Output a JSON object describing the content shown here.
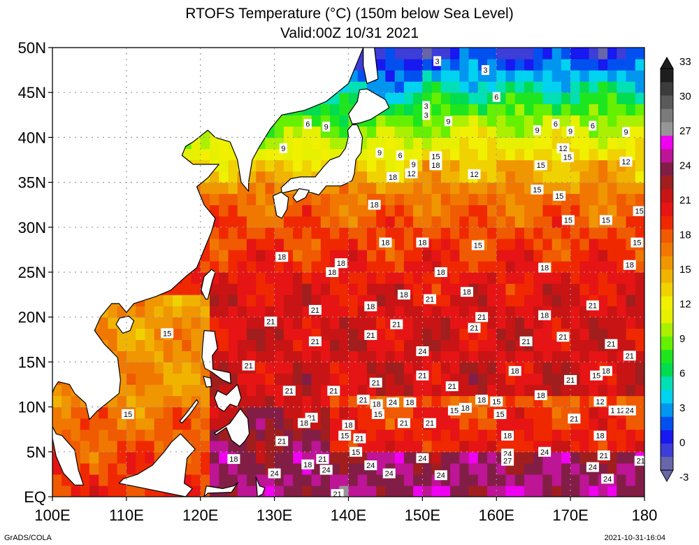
{
  "title_line1": "RTOFS Temperature (°C) (150m below Sea Level)",
  "title_line2": "Valid:00Z 10/31 2021",
  "footer_left": "GrADS/COLA",
  "footer_right": "2021-10-31-16:04",
  "map": {
    "lon_range": [
      100,
      180
    ],
    "lat_range": [
      0,
      50
    ],
    "lon_labels": [
      "100E",
      "110E",
      "120E",
      "130E",
      "140E",
      "150E",
      "160E",
      "170E",
      "180"
    ],
    "lat_labels": [
      "EQ",
      "5N",
      "10N",
      "15N",
      "20N",
      "25N",
      "30N",
      "35N",
      "40N",
      "45N",
      "50N"
    ],
    "grid": "dotted",
    "land_color": "#ffffff",
    "coast_color": "#000000"
  },
  "colorbar": {
    "labels": [
      "-3",
      "0",
      "3",
      "6",
      "9",
      "12",
      "15",
      "18",
      "21",
      "24",
      "27",
      "30",
      "33"
    ],
    "colors": [
      "#6666a8",
      "#3d3dd8",
      "#1818f0",
      "#0050f0",
      "#0096f0",
      "#00d2f0",
      "#00e0b4",
      "#00dc50",
      "#1ee61e",
      "#64f000",
      "#aaf000",
      "#e6f000",
      "#f0f000",
      "#f0d200",
      "#f0b400",
      "#f09600",
      "#f07800",
      "#f05a00",
      "#f02800",
      "#e61414",
      "#c81414",
      "#a01e1e",
      "#821e46",
      "#be1496",
      "#f000f0",
      "#969696",
      "#7a7a7a",
      "#5a5a5a",
      "#3c3c3c",
      "#1e1e1e"
    ]
  },
  "contour_labels": [
    {
      "t": "3",
      "lon": 152.0,
      "lat": 48.5
    },
    {
      "t": "3",
      "lon": 158.5,
      "lat": 47.5
    },
    {
      "t": "6",
      "lon": 160.0,
      "lat": 44.5
    },
    {
      "t": "3",
      "lon": 150.5,
      "lat": 43.5
    },
    {
      "t": "3",
      "lon": 150.5,
      "lat": 42.5
    },
    {
      "t": "9",
      "lon": 153.5,
      "lat": 41.8
    },
    {
      "t": "6",
      "lon": 134.5,
      "lat": 41.5
    },
    {
      "t": "9",
      "lon": 137.0,
      "lat": 41.2
    },
    {
      "t": "9",
      "lon": 131.2,
      "lat": 38.8
    },
    {
      "t": "6",
      "lon": 168.0,
      "lat": 41.5
    },
    {
      "t": "9",
      "lon": 165.5,
      "lat": 40.8
    },
    {
      "t": "9",
      "lon": 170.0,
      "lat": 40.7
    },
    {
      "t": "6",
      "lon": 173.0,
      "lat": 41.3
    },
    {
      "t": "9",
      "lon": 177.5,
      "lat": 40.6
    },
    {
      "t": "9",
      "lon": 144.2,
      "lat": 38.3
    },
    {
      "t": "6",
      "lon": 147.0,
      "lat": 38.0
    },
    {
      "t": "9",
      "lon": 148.8,
      "lat": 37.0
    },
    {
      "t": "12",
      "lon": 148.5,
      "lat": 36.0
    },
    {
      "t": "15",
      "lon": 151.8,
      "lat": 37.9
    },
    {
      "t": "18",
      "lon": 151.8,
      "lat": 36.9
    },
    {
      "t": "12",
      "lon": 157.0,
      "lat": 35.9
    },
    {
      "t": "12",
      "lon": 169.0,
      "lat": 38.8
    },
    {
      "t": "15",
      "lon": 169.6,
      "lat": 37.8
    },
    {
      "t": "15",
      "lon": 166.0,
      "lat": 36.9
    },
    {
      "t": "12",
      "lon": 177.5,
      "lat": 37.3
    },
    {
      "t": "18",
      "lon": 146.0,
      "lat": 35.6
    },
    {
      "t": "18",
      "lon": 143.5,
      "lat": 32.5
    },
    {
      "t": "15",
      "lon": 165.5,
      "lat": 34.2
    },
    {
      "t": "15",
      "lon": 168.5,
      "lat": 33.5
    },
    {
      "t": "15",
      "lon": 179.3,
      "lat": 31.8
    },
    {
      "t": "15",
      "lon": 169.7,
      "lat": 30.8
    },
    {
      "t": "15",
      "lon": 174.8,
      "lat": 30.8
    },
    {
      "t": "18",
      "lon": 145.0,
      "lat": 28.3
    },
    {
      "t": "18",
      "lon": 150.0,
      "lat": 28.3
    },
    {
      "t": "15",
      "lon": 157.5,
      "lat": 28.0
    },
    {
      "t": "15",
      "lon": 179.0,
      "lat": 28.3
    },
    {
      "t": "18",
      "lon": 131.0,
      "lat": 26.7
    },
    {
      "t": "18",
      "lon": 139.0,
      "lat": 26.0
    },
    {
      "t": "18",
      "lon": 137.8,
      "lat": 25.0
    },
    {
      "t": "18",
      "lon": 152.5,
      "lat": 25.0
    },
    {
      "t": "18",
      "lon": 166.5,
      "lat": 25.5
    },
    {
      "t": "18",
      "lon": 178.0,
      "lat": 25.8
    },
    {
      "t": "18",
      "lon": 156.0,
      "lat": 22.8
    },
    {
      "t": "18",
      "lon": 147.5,
      "lat": 22.5
    },
    {
      "t": "21",
      "lon": 151.0,
      "lat": 22.0
    },
    {
      "t": "18",
      "lon": 143.0,
      "lat": 21.2
    },
    {
      "t": "21",
      "lon": 135.5,
      "lat": 20.8
    },
    {
      "t": "21",
      "lon": 173.0,
      "lat": 21.3
    },
    {
      "t": "21",
      "lon": 158.0,
      "lat": 20.0
    },
    {
      "t": "18",
      "lon": 166.5,
      "lat": 20.2
    },
    {
      "t": "21",
      "lon": 129.5,
      "lat": 19.5
    },
    {
      "t": "21",
      "lon": 146.5,
      "lat": 19.2
    },
    {
      "t": "21",
      "lon": 157.0,
      "lat": 18.8
    },
    {
      "t": "15",
      "lon": 115.5,
      "lat": 18.2
    },
    {
      "t": "21",
      "lon": 143.0,
      "lat": 18.0
    },
    {
      "t": "21",
      "lon": 135.5,
      "lat": 17.3
    },
    {
      "t": "21",
      "lon": 169.0,
      "lat": 17.8
    },
    {
      "t": "21",
      "lon": 164.0,
      "lat": 17.3
    },
    {
      "t": "21",
      "lon": 175.5,
      "lat": 17.0
    },
    {
      "t": "24",
      "lon": 150.0,
      "lat": 16.2
    },
    {
      "t": "21",
      "lon": 178.0,
      "lat": 15.7
    },
    {
      "t": "21",
      "lon": 126.5,
      "lat": 14.6
    },
    {
      "t": "18",
      "lon": 162.5,
      "lat": 14.0
    },
    {
      "t": "18",
      "lon": 174.8,
      "lat": 14.0
    },
    {
      "t": "15",
      "lon": 173.5,
      "lat": 13.5
    },
    {
      "t": "21",
      "lon": 150.0,
      "lat": 13.5
    },
    {
      "t": "21",
      "lon": 170.0,
      "lat": 13.0
    },
    {
      "t": "21",
      "lon": 143.7,
      "lat": 12.7
    },
    {
      "t": "21",
      "lon": 154.0,
      "lat": 12.3
    },
    {
      "t": "21",
      "lon": 132.0,
      "lat": 11.8
    },
    {
      "t": "21",
      "lon": 138.0,
      "lat": 11.8
    },
    {
      "t": "18",
      "lon": 166.0,
      "lat": 11.3
    },
    {
      "t": "21",
      "lon": 142.0,
      "lat": 10.8
    },
    {
      "t": "18",
      "lon": 143.8,
      "lat": 10.3
    },
    {
      "t": "24",
      "lon": 146.0,
      "lat": 10.5
    },
    {
      "t": "18",
      "lon": 148.3,
      "lat": 10.5
    },
    {
      "t": "18",
      "lon": 158.0,
      "lat": 10.8
    },
    {
      "t": "15",
      "lon": 160.0,
      "lat": 10.6
    },
    {
      "t": "12",
      "lon": 174.0,
      "lat": 10.6
    },
    {
      "t": "18",
      "lon": 155.8,
      "lat": 9.9
    },
    {
      "t": "15",
      "lon": 154.3,
      "lat": 9.6
    },
    {
      "t": "12",
      "lon": 176.0,
      "lat": 9.6
    },
    {
      "t": "12",
      "lon": 176.8,
      "lat": 9.6
    },
    {
      "t": "24",
      "lon": 178.0,
      "lat": 9.6
    },
    {
      "t": "15",
      "lon": 110.2,
      "lat": 9.2
    },
    {
      "t": "21",
      "lon": 135.0,
      "lat": 8.8
    },
    {
      "t": "15",
      "lon": 160.5,
      "lat": 9.2
    },
    {
      "t": "15",
      "lon": 144.0,
      "lat": 9.2
    },
    {
      "t": "21",
      "lon": 170.5,
      "lat": 8.7
    },
    {
      "t": "18",
      "lon": 134.0,
      "lat": 8.2
    },
    {
      "t": "21",
      "lon": 147.5,
      "lat": 8.2
    },
    {
      "t": "21",
      "lon": 151.0,
      "lat": 8.2
    },
    {
      "t": "18",
      "lon": 140.0,
      "lat": 8.0
    },
    {
      "t": "15",
      "lon": 139.5,
      "lat": 6.8
    },
    {
      "t": "21",
      "lon": 141.5,
      "lat": 6.5
    },
    {
      "t": "18",
      "lon": 161.5,
      "lat": 6.8
    },
    {
      "t": "18",
      "lon": 174.0,
      "lat": 6.8
    },
    {
      "t": "21",
      "lon": 131.0,
      "lat": 6.2
    },
    {
      "t": "15",
      "lon": 141.0,
      "lat": 5.0
    },
    {
      "t": "24",
      "lon": 161.5,
      "lat": 4.8
    },
    {
      "t": "24",
      "lon": 166.5,
      "lat": 5.0
    },
    {
      "t": "21",
      "lon": 174.5,
      "lat": 4.6
    },
    {
      "t": "18",
      "lon": 124.5,
      "lat": 4.2
    },
    {
      "t": "21",
      "lon": 136.5,
      "lat": 4.2
    },
    {
      "t": "24",
      "lon": 150.0,
      "lat": 4.3
    },
    {
      "t": "27",
      "lon": 161.5,
      "lat": 4.0
    },
    {
      "t": "18",
      "lon": 134.5,
      "lat": 3.6
    },
    {
      "t": "24",
      "lon": 143.0,
      "lat": 3.5
    },
    {
      "t": "21",
      "lon": 179.5,
      "lat": 4.0
    },
    {
      "t": "24",
      "lon": 173.0,
      "lat": 3.3
    },
    {
      "t": "24",
      "lon": 137.0,
      "lat": 3.0
    },
    {
      "t": "24",
      "lon": 130.0,
      "lat": 2.6
    },
    {
      "t": "24",
      "lon": 145.5,
      "lat": 2.6
    },
    {
      "t": "24",
      "lon": 175.0,
      "lat": 2.0
    },
    {
      "t": "24",
      "lon": 152.5,
      "lat": 2.4
    },
    {
      "t": "21",
      "lon": 138.5,
      "lat": 0.3
    }
  ]
}
